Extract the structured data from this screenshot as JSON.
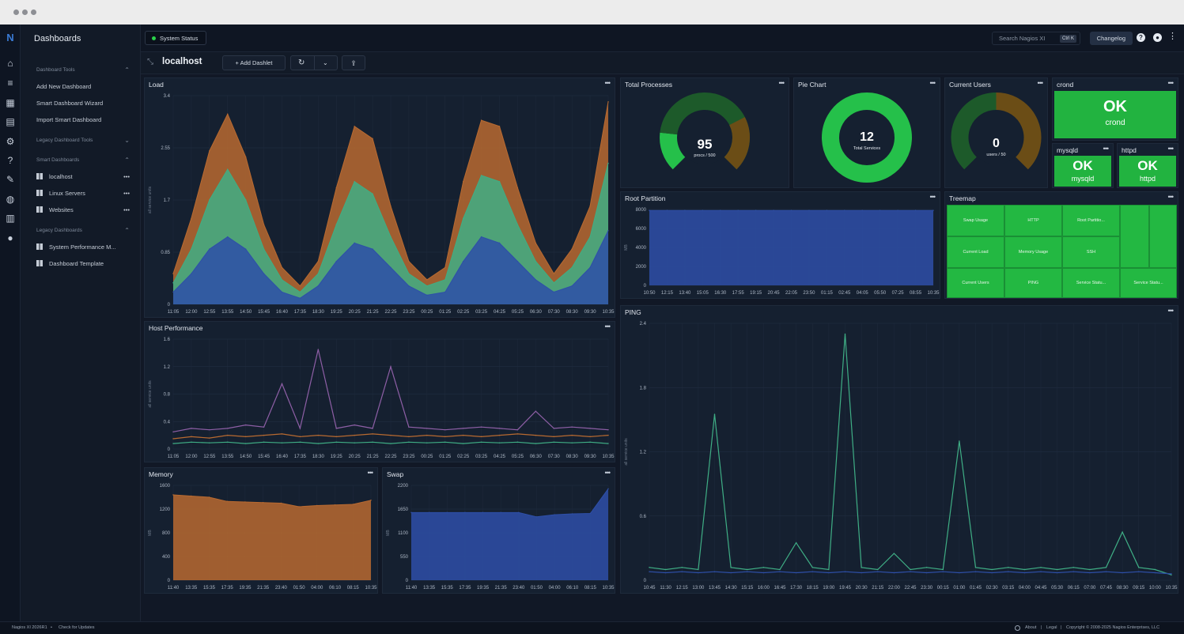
{
  "topbar": {
    "status_label": "System Status",
    "search_placeholder": "Search Nagios XI",
    "search_shortcut": "Ctrl K",
    "changelog_label": "Changelog"
  },
  "sidebar": {
    "title": "Dashboards",
    "dashboard_tools_label": "Dashboard Tools",
    "tools": [
      {
        "label": "Add New Dashboard"
      },
      {
        "label": "Smart Dashboard Wizard"
      },
      {
        "label": "Import Smart Dashboard"
      }
    ],
    "legacy_tools_label": "Legacy Dashboard Tools",
    "smart_label": "Smart Dashboards",
    "smart": [
      {
        "label": "localhost"
      },
      {
        "label": "Linux Servers"
      },
      {
        "label": "Websites"
      }
    ],
    "legacy_label": "Legacy Dashboards",
    "legacy": [
      {
        "label": "System Performance M..."
      },
      {
        "label": "Dashboard Template"
      }
    ]
  },
  "toolbar": {
    "dashboard_title": "localhost",
    "add_dashlet_label": "+ Add Dashlet"
  },
  "panels": {
    "load": {
      "title": "Load"
    },
    "host_performance": {
      "title": "Host Performance"
    },
    "memory": {
      "title": "Memory"
    },
    "swap": {
      "title": "Swap"
    },
    "total_processes": {
      "title": "Total Processes",
      "value": "95",
      "caption": "procs / 500"
    },
    "pie_chart": {
      "title": "Pie Chart",
      "value": "12",
      "caption": "Total Services"
    },
    "current_users": {
      "title": "Current Users",
      "value": "0",
      "caption": "users / 50"
    },
    "crond": {
      "title": "crond",
      "status": "OK",
      "service": "crond"
    },
    "mysqld": {
      "title": "mysqld",
      "status": "OK",
      "service": "mysqld"
    },
    "httpd": {
      "title": "httpd",
      "status": "OK",
      "service": "httpd"
    },
    "root_partition": {
      "title": "Root Partition"
    },
    "treemap": {
      "title": "Treemap",
      "cells": [
        "Swap Usage",
        "HTTP",
        "Root Partitio...",
        "Current Load",
        "Memory Usage",
        "SSH",
        "Current Users",
        "PING",
        "Service Statu...",
        "Service Statu..."
      ]
    },
    "ping": {
      "title": "PING"
    }
  },
  "footer": {
    "version": "Nagios XI 2026R1",
    "updates": "Check for Updates",
    "about": "About",
    "legal": "Legal",
    "copyright": "Copyright © 2008-2025 Nagios Enterprises, LLC"
  },
  "colors": {
    "accent_green": "#22b340",
    "panel_bg": "#152030",
    "orange": "#b86a30",
    "teal": "#3fae85",
    "blue": "#2e4fa8"
  },
  "chart_data": [
    {
      "type": "area",
      "id": "load",
      "ylabel": "all service units",
      "yticks": [
        "3.4",
        "2.55",
        "1.7",
        "0.85",
        "0"
      ],
      "ylim": [
        0,
        3.4
      ],
      "x": [
        "11:05",
        "12:00",
        "12:55",
        "13:55",
        "14:50",
        "15:45",
        "16:40",
        "17:35",
        "18:30",
        "19:25",
        "20:25",
        "21:25",
        "22:25",
        "23:25",
        "00:25",
        "01:25",
        "02:25",
        "03:25",
        "04:25",
        "05:25",
        "06:30",
        "07:30",
        "08:30",
        "09:30",
        "10:35"
      ],
      "series": [
        {
          "color": "#b86a30",
          "values": [
            0.5,
            1.4,
            2.5,
            3.1,
            2.4,
            1.3,
            0.6,
            0.3,
            0.7,
            1.9,
            2.9,
            2.7,
            1.6,
            0.7,
            0.4,
            0.6,
            2.0,
            3.0,
            2.9,
            1.9,
            1.0,
            0.5,
            0.9,
            1.6,
            3.3
          ]
        },
        {
          "color": "#3fae85",
          "values": [
            0.35,
            0.9,
            1.7,
            2.2,
            1.7,
            0.9,
            0.4,
            0.2,
            0.5,
            1.3,
            2.0,
            1.8,
            1.1,
            0.5,
            0.3,
            0.4,
            1.4,
            2.1,
            2.0,
            1.3,
            0.7,
            0.35,
            0.6,
            1.1,
            2.3
          ]
        },
        {
          "color": "#2e4fa8",
          "values": [
            0.2,
            0.5,
            0.9,
            1.1,
            0.9,
            0.5,
            0.2,
            0.1,
            0.3,
            0.7,
            1.0,
            0.9,
            0.6,
            0.3,
            0.15,
            0.2,
            0.7,
            1.1,
            1.0,
            0.7,
            0.4,
            0.2,
            0.3,
            0.6,
            1.2
          ]
        }
      ]
    },
    {
      "type": "line",
      "id": "host_performance",
      "ylabel": "all service units",
      "yticks": [
        "1.6",
        "1.2",
        "0.8",
        "0.4",
        "0"
      ],
      "ylim": [
        0,
        1.6
      ],
      "x": [
        "11:05",
        "12:00",
        "12:55",
        "13:55",
        "14:50",
        "15:45",
        "16:40",
        "17:35",
        "18:30",
        "19:25",
        "20:25",
        "21:25",
        "22:25",
        "23:25",
        "00:25",
        "01:25",
        "02:25",
        "03:25",
        "04:25",
        "05:25",
        "06:30",
        "07:30",
        "08:30",
        "09:30",
        "10:35"
      ],
      "series": [
        {
          "color": "#8e5fa6",
          "values": [
            0.25,
            0.3,
            0.28,
            0.3,
            0.35,
            0.32,
            0.95,
            0.3,
            1.45,
            0.3,
            0.35,
            0.3,
            1.2,
            0.32,
            0.3,
            0.28,
            0.3,
            0.32,
            0.3,
            0.28,
            0.55,
            0.3,
            0.32,
            0.3,
            0.28
          ]
        },
        {
          "color": "#b86a30",
          "values": [
            0.15,
            0.18,
            0.16,
            0.2,
            0.18,
            0.2,
            0.22,
            0.18,
            0.2,
            0.18,
            0.2,
            0.22,
            0.2,
            0.18,
            0.2,
            0.18,
            0.2,
            0.18,
            0.2,
            0.22,
            0.2,
            0.18,
            0.2,
            0.18,
            0.2
          ]
        },
        {
          "color": "#3fae85",
          "values": [
            0.08,
            0.1,
            0.09,
            0.1,
            0.08,
            0.1,
            0.09,
            0.1,
            0.08,
            0.1,
            0.09,
            0.1,
            0.08,
            0.1,
            0.09,
            0.1,
            0.08,
            0.1,
            0.09,
            0.1,
            0.08,
            0.1,
            0.09,
            0.1,
            0.08
          ]
        }
      ]
    },
    {
      "type": "area",
      "id": "memory",
      "ylabel": "MB",
      "yticks": [
        "1600",
        "1200",
        "800",
        "400",
        "0"
      ],
      "ylim": [
        0,
        1600
      ],
      "x": [
        "11:40",
        "13:35",
        "15:35",
        "17:35",
        "19:35",
        "21:35",
        "23:40",
        "01:50",
        "04:00",
        "06:10",
        "08:15",
        "10:35"
      ],
      "series": [
        {
          "color": "#b86a30",
          "values": [
            1440,
            1420,
            1400,
            1330,
            1320,
            1310,
            1300,
            1240,
            1260,
            1270,
            1280,
            1350
          ]
        }
      ]
    },
    {
      "type": "area",
      "id": "swap",
      "ylabel": "MB",
      "yticks": [
        "2200",
        "1650",
        "1100",
        "550",
        "0"
      ],
      "ylim": [
        0,
        2200
      ],
      "x": [
        "11:40",
        "13:35",
        "15:35",
        "17:35",
        "19:35",
        "21:35",
        "23:40",
        "01:50",
        "04:00",
        "06:10",
        "08:15",
        "10:35"
      ],
      "series": [
        {
          "color": "#2e4fa8",
          "values": [
            1570,
            1570,
            1570,
            1570,
            1570,
            1570,
            1570,
            1470,
            1520,
            1540,
            1550,
            2120
          ]
        }
      ]
    },
    {
      "type": "area",
      "id": "root_partition",
      "ylabel": "MB",
      "yticks": [
        "8000",
        "6000",
        "4000",
        "2000",
        "0"
      ],
      "ylim": [
        0,
        8000
      ],
      "x": [
        "10:50",
        "12:15",
        "13:40",
        "15:05",
        "16:30",
        "17:55",
        "19:15",
        "20:45",
        "22:05",
        "23:50",
        "01:15",
        "02:45",
        "04:05",
        "05:50",
        "07:25",
        "08:55",
        "10:35"
      ],
      "series": [
        {
          "color": "#2e4fa8",
          "values": [
            7900,
            7900,
            7900,
            7900,
            7900,
            7900,
            7900,
            7900,
            7900,
            7900,
            7900,
            7900,
            7900,
            7900,
            7900,
            7900,
            7900
          ]
        }
      ]
    },
    {
      "type": "line",
      "id": "ping",
      "ylabel": "all service units",
      "yticks": [
        "2.4",
        "1.8",
        "1.2",
        "0.6",
        "0"
      ],
      "ylim": [
        0,
        2.4
      ],
      "x": [
        "10:45",
        "11:30",
        "12:15",
        "13:00",
        "13:45",
        "14:30",
        "15:15",
        "16:00",
        "16:45",
        "17:30",
        "18:15",
        "19:00",
        "19:45",
        "20:30",
        "21:15",
        "22:00",
        "22:45",
        "23:30",
        "00:15",
        "01:00",
        "01:45",
        "02:30",
        "03:15",
        "04:00",
        "04:45",
        "05:30",
        "06:15",
        "07:00",
        "07:45",
        "08:30",
        "09:15",
        "10:00",
        "10:35"
      ],
      "series": [
        {
          "color": "#3fae85",
          "values": [
            0.12,
            0.1,
            0.12,
            0.1,
            1.55,
            0.12,
            0.1,
            0.12,
            0.1,
            0.35,
            0.12,
            0.1,
            2.3,
            0.12,
            0.1,
            0.25,
            0.1,
            0.12,
            0.1,
            1.3,
            0.12,
            0.1,
            0.12,
            0.1,
            0.12,
            0.1,
            0.12,
            0.1,
            0.12,
            0.45,
            0.12,
            0.1,
            0.05
          ]
        },
        {
          "color": "#2e4fa8",
          "values": [
            0.08,
            0.07,
            0.08,
            0.07,
            0.08,
            0.07,
            0.08,
            0.07,
            0.08,
            0.07,
            0.08,
            0.07,
            0.08,
            0.07,
            0.08,
            0.07,
            0.08,
            0.07,
            0.08,
            0.07,
            0.08,
            0.07,
            0.08,
            0.07,
            0.08,
            0.07,
            0.08,
            0.07,
            0.08,
            0.07,
            0.08,
            0.07,
            0.06
          ]
        }
      ]
    },
    {
      "type": "pie",
      "id": "total_processes",
      "slices": [
        {
          "label": "used",
          "value": 95,
          "color": "#25c04a"
        },
        {
          "label": "free",
          "value": 405,
          "color": "#1d5a2a"
        }
      ]
    },
    {
      "type": "pie",
      "id": "pie_chart",
      "slices": [
        {
          "label": "OK",
          "value": 12,
          "color": "#25c04a"
        }
      ]
    },
    {
      "type": "pie",
      "id": "current_users",
      "slices": [
        {
          "label": "used",
          "value": 0,
          "color": "#25c04a"
        },
        {
          "label": "free",
          "value": 50,
          "color": "#1d5a2a"
        }
      ]
    }
  ]
}
